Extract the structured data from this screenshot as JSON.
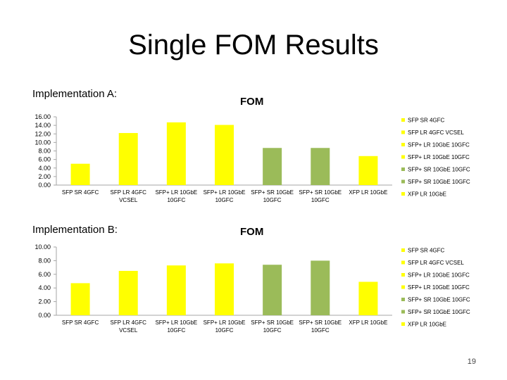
{
  "slide": {
    "title": "Single FOM Results",
    "page_number": "19"
  },
  "colors": {
    "yellow": "#ffff00",
    "green": "#9bbb59"
  },
  "chart_data": [
    {
      "type": "bar",
      "section_label": "Implementation A:",
      "title": "FOM",
      "categories": [
        "SFP SR 4GFC",
        "SFP LR 4GFC VCSEL",
        "SFP+ LR 10GbE 10GFC",
        "SFP+ LR 10GbE 10GFC",
        "SFP+ SR 10GbE 10GFC",
        "SFP+ SR 10GbE 10GFC",
        "XFP LR 10GbE"
      ],
      "category_lines": [
        [
          "SFP SR 4GFC"
        ],
        [
          "SFP LR 4GFC",
          "VCSEL"
        ],
        [
          "SFP+ LR 10GbE",
          "10GFC"
        ],
        [
          "SFP+ LR 10GbE",
          "10GFC"
        ],
        [
          "SFP+ SR 10GbE",
          "10GFC"
        ],
        [
          "SFP+ SR 10GbE",
          "10GFC"
        ],
        [
          "XFP LR 10GbE"
        ]
      ],
      "values": [
        5.0,
        12.2,
        14.7,
        14.1,
        8.7,
        8.7,
        6.8
      ],
      "bar_colors": [
        "#ffff00",
        "#ffff00",
        "#ffff00",
        "#ffff00",
        "#9bbb59",
        "#9bbb59",
        "#ffff00"
      ],
      "ylim": [
        0,
        16
      ],
      "yticks": [
        "16.00",
        "14.00",
        "12.00",
        "10.00",
        "8.00",
        "6.00",
        "4.00",
        "2.00",
        "0.00"
      ],
      "legend": [
        "SFP SR 4GFC",
        "SFP LR 4GFC VCSEL",
        "SFP+ LR 10GbE 10GFC",
        "SFP+ LR 10GbE 10GFC",
        "SFP+ SR 10GbE 10GFC",
        "SFP+ SR 10GbE 10GFC",
        "XFP LR 10GbE"
      ],
      "legend_position": "right",
      "grid": false
    },
    {
      "type": "bar",
      "section_label": "Implementation B:",
      "title": "FOM",
      "categories": [
        "SFP SR 4GFC",
        "SFP LR 4GFC VCSEL",
        "SFP+ LR 10GbE 10GFC",
        "SFP+ LR 10GbE 10GFC",
        "SFP+ SR 10GbE 10GFC",
        "SFP+ SR 10GbE 10GFC",
        "XFP LR 10GbE"
      ],
      "category_lines": [
        [
          "SFP SR 4GFC"
        ],
        [
          "SFP LR 4GFC",
          "VCSEL"
        ],
        [
          "SFP+ LR 10GbE",
          "10GFC"
        ],
        [
          "SFP+ LR 10GbE",
          "10GFC"
        ],
        [
          "SFP+ SR 10GbE",
          "10GFC"
        ],
        [
          "SFP+ SR 10GbE",
          "10GFC"
        ],
        [
          "XFP LR 10GbE"
        ]
      ],
      "values": [
        4.7,
        6.5,
        7.3,
        7.6,
        7.4,
        8.0,
        4.9
      ],
      "bar_colors": [
        "#ffff00",
        "#ffff00",
        "#ffff00",
        "#ffff00",
        "#9bbb59",
        "#9bbb59",
        "#ffff00"
      ],
      "ylim": [
        0,
        10
      ],
      "yticks": [
        "10.00",
        "8.00",
        "6.00",
        "4.00",
        "2.00",
        "0.00"
      ],
      "legend": [
        "SFP SR 4GFC",
        "SFP LR 4GFC VCSEL",
        "SFP+ LR 10GbE 10GFC",
        "SFP+ LR 10GbE 10GFC",
        "SFP+ SR 10GbE 10GFC",
        "SFP+ SR 10GbE 10GFC",
        "XFP LR 10GbE"
      ],
      "legend_position": "right",
      "grid": false
    }
  ]
}
